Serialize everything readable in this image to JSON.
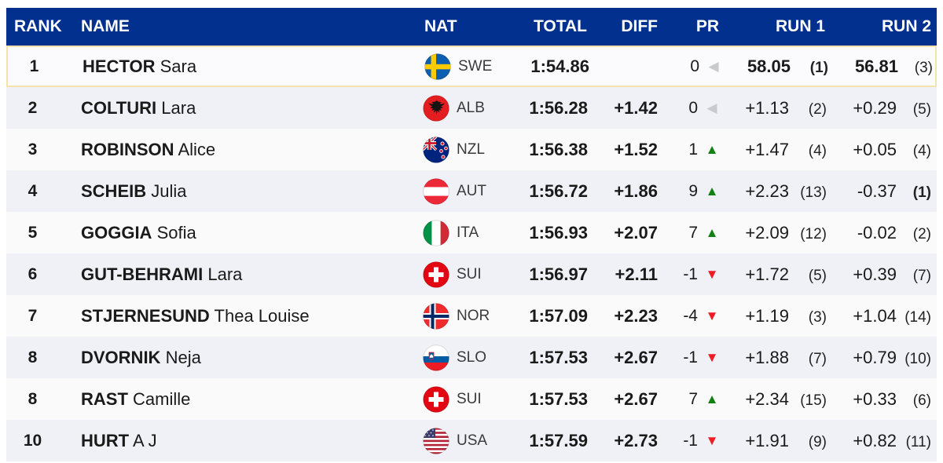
{
  "header": {
    "columns": {
      "rank": {
        "label": "RANK"
      },
      "name": {
        "label": "NAME"
      },
      "nat": {
        "label": "NAT"
      },
      "total": {
        "label": "TOTAL"
      },
      "diff": {
        "label": "DIFF"
      },
      "pr": {
        "label": "PR"
      },
      "run1": {
        "label": "RUN 1"
      },
      "run2": {
        "label": "RUN 2"
      }
    }
  },
  "icons": {
    "up": "▲",
    "down": "▼",
    "none": "◀"
  },
  "colors": {
    "header_bg": "#02308F",
    "row_light_bg": "#FAFAFB",
    "row_dark_bg": "#EFF1F6",
    "leader_row_bg": "#FBFBFD",
    "leader_border": "#F5E3AE",
    "up_triangle": "#128012",
    "down_triangle": "#EE1C25",
    "neutral_triangle": "#C9CACD",
    "header_text": "#FFFFFF",
    "body_text": "#1A1A1A"
  },
  "rows": [
    {
      "rank": "1",
      "surname": "HECTOR",
      "firstname": "Sara",
      "nat": "SWE",
      "total": "1:54.86",
      "diff": "",
      "pr": "0",
      "pr_dir": "none",
      "run1_time": "58.05",
      "run1_rank": "(1)",
      "run1_time_bold": true,
      "run1_rank_bold": true,
      "run2_time": "56.81",
      "run2_rank": "(3)",
      "run2_time_bold": true,
      "run2_rank_bold": false,
      "leader": true
    },
    {
      "rank": "2",
      "surname": "COLTURI",
      "firstname": "Lara",
      "nat": "ALB",
      "total": "1:56.28",
      "diff": "+1.42",
      "pr": "0",
      "pr_dir": "none",
      "run1_time": "+1.13",
      "run1_rank": "(2)",
      "run1_time_bold": false,
      "run1_rank_bold": false,
      "run2_time": "+0.29",
      "run2_rank": "(5)",
      "run2_time_bold": false,
      "run2_rank_bold": false,
      "leader": false
    },
    {
      "rank": "3",
      "surname": "ROBINSON",
      "firstname": "Alice",
      "nat": "NZL",
      "total": "1:56.38",
      "diff": "+1.52",
      "pr": "1",
      "pr_dir": "up",
      "run1_time": "+1.47",
      "run1_rank": "(4)",
      "run1_time_bold": false,
      "run1_rank_bold": false,
      "run2_time": "+0.05",
      "run2_rank": "(4)",
      "run2_time_bold": false,
      "run2_rank_bold": false,
      "leader": false
    },
    {
      "rank": "4",
      "surname": "SCHEIB",
      "firstname": "Julia",
      "nat": "AUT",
      "total": "1:56.72",
      "diff": "+1.86",
      "pr": "9",
      "pr_dir": "up",
      "run1_time": "+2.23",
      "run1_rank": "(13)",
      "run1_time_bold": false,
      "run1_rank_bold": false,
      "run2_time": "-0.37",
      "run2_rank": "(1)",
      "run2_time_bold": false,
      "run2_rank_bold": true,
      "leader": false
    },
    {
      "rank": "5",
      "surname": "GOGGIA",
      "firstname": "Sofia",
      "nat": "ITA",
      "total": "1:56.93",
      "diff": "+2.07",
      "pr": "7",
      "pr_dir": "up",
      "run1_time": "+2.09",
      "run1_rank": "(12)",
      "run1_time_bold": false,
      "run1_rank_bold": false,
      "run2_time": "-0.02",
      "run2_rank": "(2)",
      "run2_time_bold": false,
      "run2_rank_bold": false,
      "leader": false
    },
    {
      "rank": "6",
      "surname": "GUT-BEHRAMI",
      "firstname": "Lara",
      "nat": "SUI",
      "total": "1:56.97",
      "diff": "+2.11",
      "pr": "-1",
      "pr_dir": "down",
      "run1_time": "+1.72",
      "run1_rank": "(5)",
      "run1_time_bold": false,
      "run1_rank_bold": false,
      "run2_time": "+0.39",
      "run2_rank": "(7)",
      "run2_time_bold": false,
      "run2_rank_bold": false,
      "leader": false
    },
    {
      "rank": "7",
      "surname": "STJERNESUND",
      "firstname": "Thea Louise",
      "nat": "NOR",
      "total": "1:57.09",
      "diff": "+2.23",
      "pr": "-4",
      "pr_dir": "down",
      "run1_time": "+1.19",
      "run1_rank": "(3)",
      "run1_time_bold": false,
      "run1_rank_bold": false,
      "run2_time": "+1.04",
      "run2_rank": "(14)",
      "run2_time_bold": false,
      "run2_rank_bold": false,
      "leader": false
    },
    {
      "rank": "8",
      "surname": "DVORNIK",
      "firstname": "Neja",
      "nat": "SLO",
      "total": "1:57.53",
      "diff": "+2.67",
      "pr": "-1",
      "pr_dir": "down",
      "run1_time": "+1.88",
      "run1_rank": "(7)",
      "run1_time_bold": false,
      "run1_rank_bold": false,
      "run2_time": "+0.79",
      "run2_rank": "(10)",
      "run2_time_bold": false,
      "run2_rank_bold": false,
      "leader": false
    },
    {
      "rank": "8",
      "surname": "RAST",
      "firstname": "Camille",
      "nat": "SUI",
      "total": "1:57.53",
      "diff": "+2.67",
      "pr": "7",
      "pr_dir": "up",
      "run1_time": "+2.34",
      "run1_rank": "(15)",
      "run1_time_bold": false,
      "run1_rank_bold": false,
      "run2_time": "+0.33",
      "run2_rank": "(6)",
      "run2_time_bold": false,
      "run2_rank_bold": false,
      "leader": false
    },
    {
      "rank": "10",
      "surname": "HURT",
      "firstname": "A J",
      "nat": "USA",
      "total": "1:57.59",
      "diff": "+2.73",
      "pr": "-1",
      "pr_dir": "down",
      "run1_time": "+1.91",
      "run1_rank": "(9)",
      "run1_time_bold": false,
      "run1_rank_bold": false,
      "run2_time": "+0.82",
      "run2_rank": "(11)",
      "run2_time_bold": false,
      "run2_rank_bold": false,
      "leader": false
    }
  ]
}
